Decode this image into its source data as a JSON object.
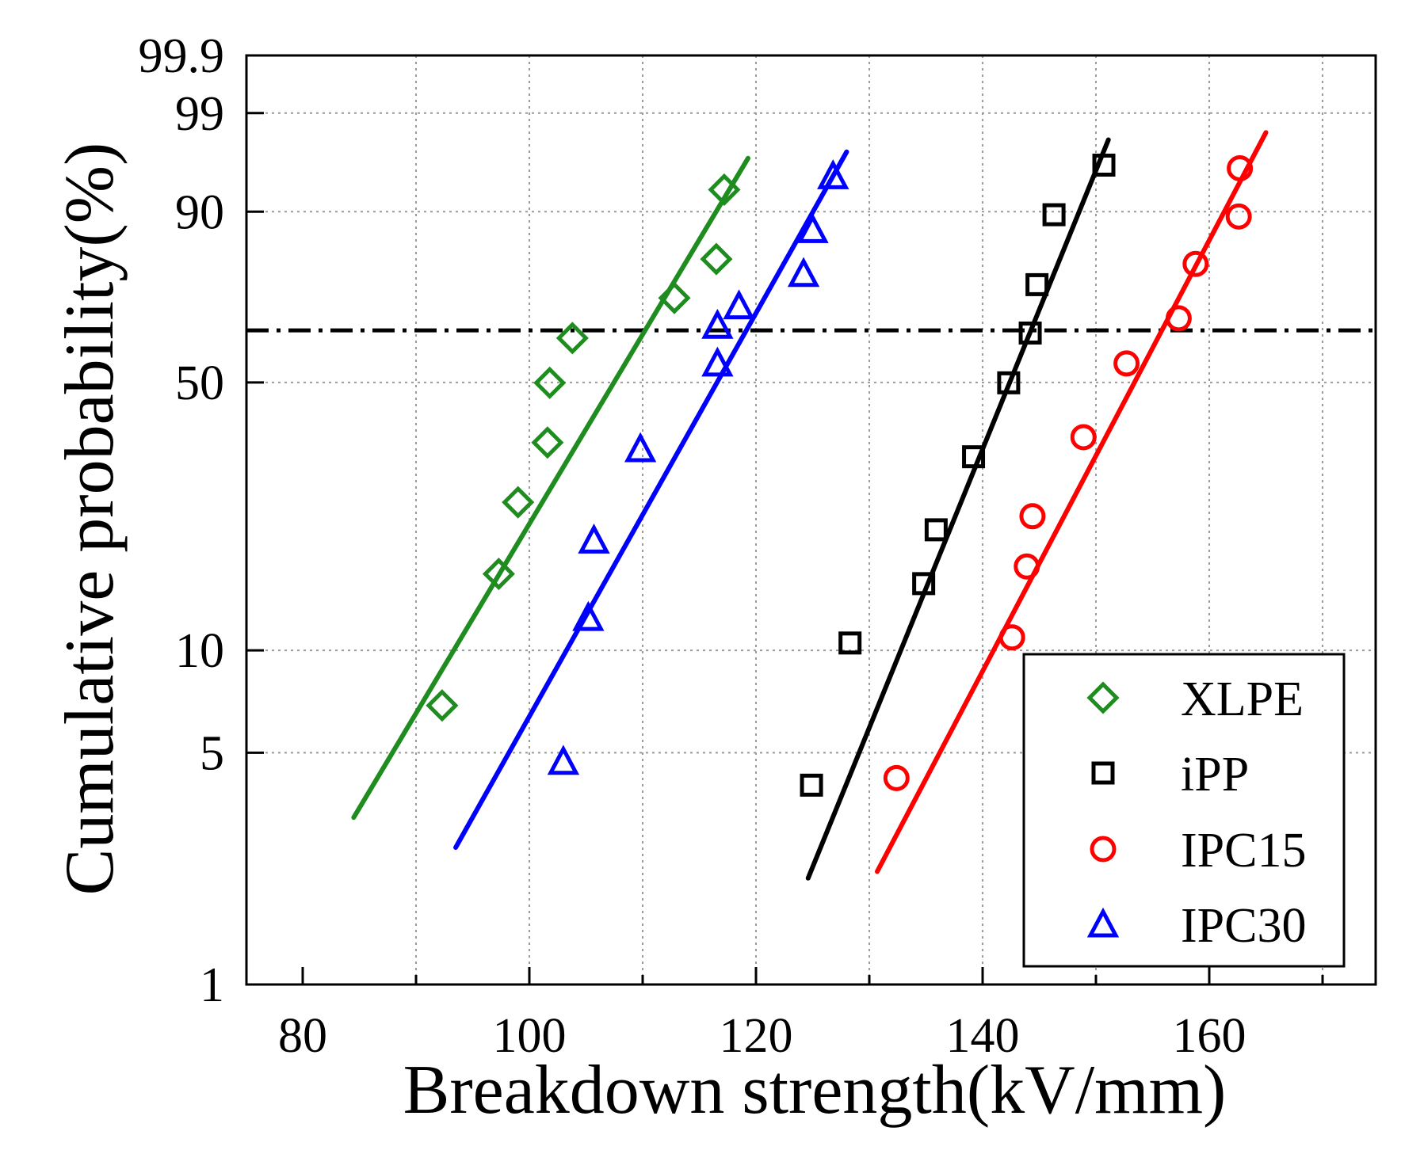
{
  "chart_data": {
    "type": "scatter",
    "title": "",
    "xlabel": "Breakdown strength(kV/mm)",
    "ylabel": "Cumulative probability(%)",
    "xlim": [
      75,
      175
    ],
    "ylim": [
      1,
      99.9
    ],
    "y_scale": "weibull",
    "x_ticks": [
      80,
      100,
      120,
      140,
      160
    ],
    "x_tick_labels": [
      "80",
      "100",
      "120",
      "140",
      "160"
    ],
    "x_minor_ticks": [
      90,
      110,
      130,
      150,
      170
    ],
    "y_ticks": [
      1,
      5,
      10,
      50,
      90,
      99,
      99.9
    ],
    "y_tick_labels": [
      "1",
      "5",
      "10",
      "50",
      "90",
      "99",
      "99.9"
    ],
    "reference_line": {
      "y": 63.2,
      "style": "dash-dot",
      "color": "#000000"
    },
    "legend_position": "bottom-right",
    "series": [
      {
        "name": "XLPE",
        "marker": "diamond",
        "color": "#1e8c1e",
        "x": [
          92.3,
          97.3,
          99,
          101.6,
          101.8,
          103.8,
          112.8,
          116.5,
          117.2
        ],
        "y": [
          6.9,
          16.5,
          25.8,
          36.5,
          49.9,
          61.2,
          71.5,
          80.8,
          93.2
        ],
        "fit": {
          "x": [
            84.5,
            119.3
          ],
          "y": [
            3.2,
            96.5
          ]
        }
      },
      {
        "name": "iPP",
        "marker": "square",
        "color": "#000000",
        "x": [
          124.9,
          128.3,
          134.8,
          135.9,
          139.2,
          142.3,
          144.2,
          144.8,
          146.3,
          150.7
        ],
        "y": [
          4.0,
          10.5,
          15.5,
          21.8,
          33.7,
          49.9,
          62.5,
          74.8,
          89.5,
          95.9
        ],
        "fit": {
          "x": [
            124.6,
            151.1
          ],
          "y": [
            2.1,
            97.8
          ]
        }
      },
      {
        "name": "IPC15",
        "marker": "circle",
        "color": "#ff0000",
        "x": [
          132.4,
          142.6,
          143.9,
          144.4,
          148.9,
          152.7,
          157.3,
          158.8,
          162.6,
          162.7
        ],
        "y": [
          4.2,
          10.9,
          17.3,
          23.7,
          37.6,
          54.7,
          66.3,
          79.7,
          89.2,
          95.6
        ],
        "fit": {
          "x": [
            130.7,
            165
          ],
          "y": [
            2.2,
            98.2
          ]
        }
      },
      {
        "name": "IPC30",
        "marker": "triangle",
        "color": "#0000ff",
        "x": [
          103,
          105.2,
          105.7,
          109.8,
          116.6,
          116.6,
          118.5,
          124.2,
          125,
          126.8
        ],
        "y": [
          4.7,
          12.4,
          20.4,
          35.2,
          54.7,
          64.4,
          69.4,
          77.4,
          86.8,
          94.8
        ],
        "fit": {
          "x": [
            93.5,
            128
          ],
          "y": [
            2.6,
            97.0
          ]
        }
      }
    ]
  }
}
